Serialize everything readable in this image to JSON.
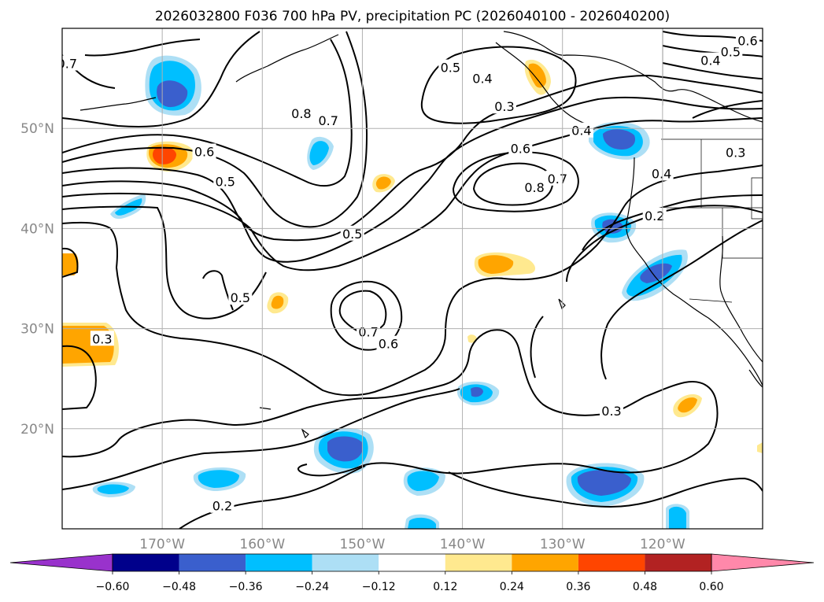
{
  "chart_data": {
    "type": "contour-map",
    "title": "2026032800 F036 700 hPa PV, precipitation PC (2026040100 - 2026040200)",
    "lon_range": [
      -180,
      -110
    ],
    "lat_range": [
      10,
      60
    ],
    "lon_ticks": [
      {
        "value": -170,
        "label": "170°W"
      },
      {
        "value": -160,
        "label": "160°W"
      },
      {
        "value": -150,
        "label": "150°W"
      },
      {
        "value": -140,
        "label": "140°W"
      },
      {
        "value": -130,
        "label": "130°W"
      },
      {
        "value": -120,
        "label": "120°W"
      }
    ],
    "lat_ticks": [
      {
        "value": 20,
        "label": "20°N"
      },
      {
        "value": 30,
        "label": "30°N"
      },
      {
        "value": 40,
        "label": "40°N"
      },
      {
        "value": 50,
        "label": "50°N"
      }
    ],
    "grid": true,
    "colorbar": {
      "orientation": "horizontal",
      "extend": "both",
      "bounds": [
        -0.6,
        -0.48,
        -0.36,
        -0.24,
        -0.12,
        0.12,
        0.24,
        0.36,
        0.48,
        0.6
      ],
      "tick_labels": [
        "−0.60",
        "−0.48",
        "−0.36",
        "−0.24",
        "−0.12",
        "0.12",
        "0.24",
        "0.36",
        "0.48",
        "0.60"
      ],
      "colors": [
        "#9932CC",
        "#00008B",
        "#3A5FCD",
        "#00BFFF",
        "#ADDFF5",
        "#FFFFFF",
        "#FFE98F",
        "#FFA500",
        "#FF4500",
        "#B22222",
        "#FF88AA"
      ]
    },
    "contour_labels": [
      {
        "lon": -179.5,
        "lat": 56.5,
        "text": "0.7"
      },
      {
        "lon": -176,
        "lat": 29,
        "text": "0.3"
      },
      {
        "lon": -164,
        "lat": 12.3,
        "text": "0.2"
      },
      {
        "lon": -165.8,
        "lat": 47.7,
        "text": "0.6"
      },
      {
        "lon": -163.7,
        "lat": 44.7,
        "text": "0.5"
      },
      {
        "lon": -162.2,
        "lat": 33.1,
        "text": "0.5"
      },
      {
        "lon": -156.1,
        "lat": 51.5,
        "text": "0.8"
      },
      {
        "lon": -153.4,
        "lat": 50.8,
        "text": "0.7"
      },
      {
        "lon": -151,
        "lat": 39.5,
        "text": "0.5"
      },
      {
        "lon": -149.4,
        "lat": 29.7,
        "text": "0.7"
      },
      {
        "lon": -147.4,
        "lat": 28.5,
        "text": "0.6"
      },
      {
        "lon": -141.2,
        "lat": 56.1,
        "text": "0.5"
      },
      {
        "lon": -138,
        "lat": 55,
        "text": "0.4"
      },
      {
        "lon": -135.8,
        "lat": 52.2,
        "text": "0.3"
      },
      {
        "lon": -134.2,
        "lat": 48,
        "text": "0.6"
      },
      {
        "lon": -132.8,
        "lat": 44.1,
        "text": "0.8"
      },
      {
        "lon": -130.5,
        "lat": 45,
        "text": "0.7"
      },
      {
        "lon": -128.1,
        "lat": 49.8,
        "text": "0.4"
      },
      {
        "lon": -125.1,
        "lat": 21.8,
        "text": "0.3"
      },
      {
        "lon": -120.1,
        "lat": 45.5,
        "text": "0.4"
      },
      {
        "lon": -120.8,
        "lat": 41.3,
        "text": "0.2"
      },
      {
        "lon": -112.7,
        "lat": 47.6,
        "text": "0.3"
      },
      {
        "lon": -115.2,
        "lat": 56.8,
        "text": "0.4"
      },
      {
        "lon": -113.2,
        "lat": 57.7,
        "text": "0.5"
      },
      {
        "lon": -111.5,
        "lat": 58.8,
        "text": "0.6"
      }
    ]
  }
}
